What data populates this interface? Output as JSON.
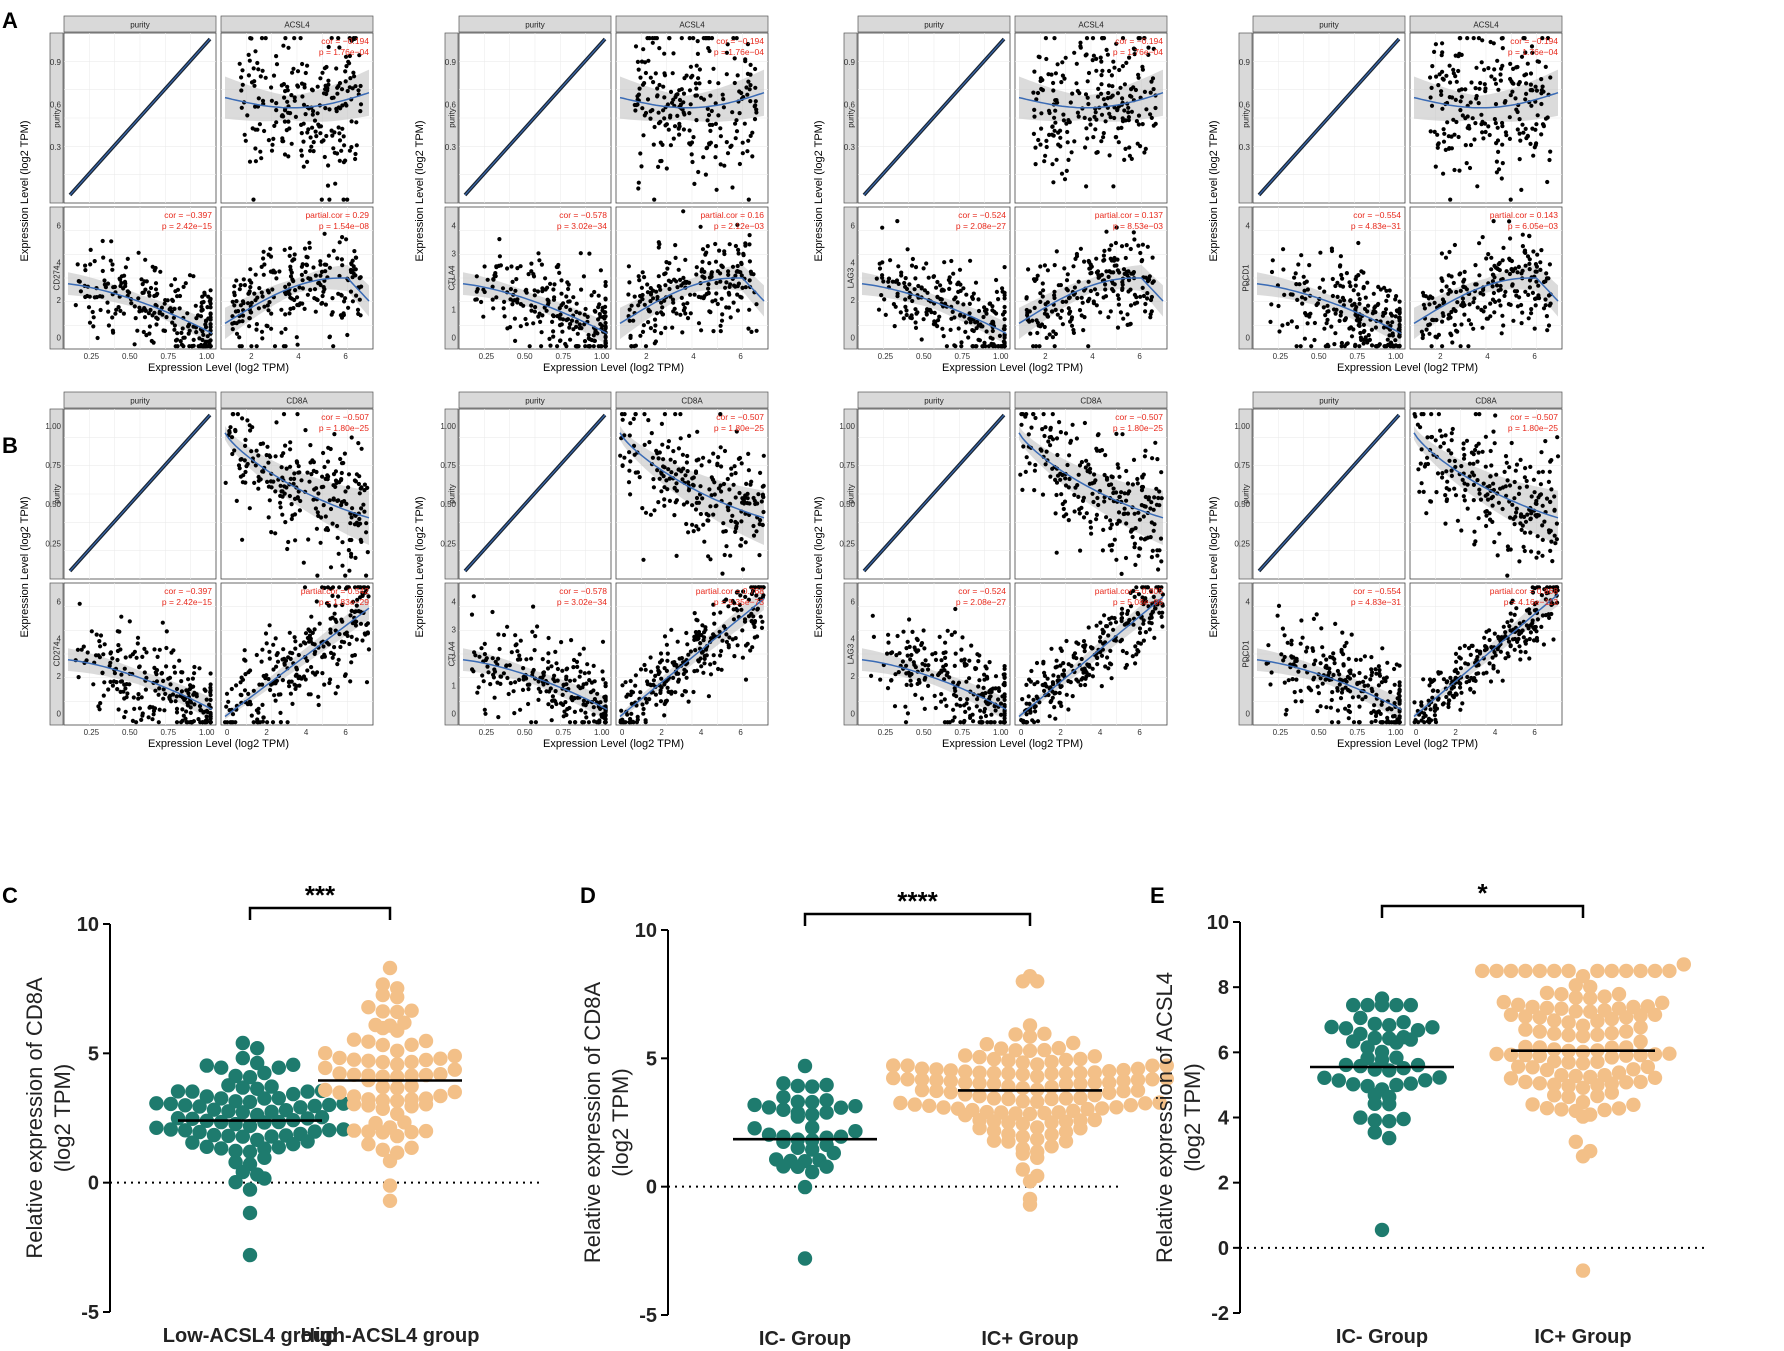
{
  "figure": {
    "panel_letters": [
      "A",
      "B",
      "C",
      "D",
      "E"
    ],
    "colors": {
      "strip_bg": "#d9d9d9",
      "left_strip_bg": "#d9d9d9",
      "point": "#000000",
      "fit_line": "#3a6bb5",
      "ci_band": "#bdbdbd",
      "stat_text": "#e8291c",
      "teal": "#1e7b6e",
      "peach": "#f3c088"
    }
  },
  "chart_data": [
    {
      "type": "scatter",
      "panel": "A",
      "gene": "CD274",
      "compare": "ACSL4",
      "facet_top_left": "purity",
      "facet_top_right": "ACSL4",
      "facet_bottom_left": "CD274",
      "xlabel": "Expression Level (log2 TPM)",
      "ylabel": "Expression Level (log2 TPM)",
      "purity_ticks": [
        "0.3",
        "0.6",
        "0.9"
      ],
      "gene_ticks": [
        "0",
        "2",
        "4",
        "6"
      ],
      "x_purity_ticks": [
        "0.25",
        "0.50",
        "0.75",
        "1.00"
      ],
      "x_gene_ticks": [
        "2",
        "4",
        "6"
      ],
      "stats_top_right": [
        "cor = −0.194",
        "p = 1.76e−04"
      ],
      "stats_bottom_left": [
        "cor = −0.397",
        "p = 2.42e−15"
      ],
      "stats_bottom_right": [
        "partial.cor = 0.29",
        "p = 1.54e−08"
      ],
      "partial_r": 0.29
    },
    {
      "type": "scatter",
      "panel": "A",
      "gene": "CTLA4",
      "compare": "ACSL4",
      "facet_top_left": "purity",
      "facet_top_right": "ACSL4",
      "facet_bottom_left": "CTLA4",
      "xlabel": "Expression Level (log2 TPM)",
      "ylabel": "Expression Level (log2 TPM)",
      "purity_ticks": [
        "0.3",
        "0.6",
        "0.9"
      ],
      "gene_ticks": [
        "0",
        "1",
        "2",
        "3",
        "4"
      ],
      "x_purity_ticks": [
        "0.25",
        "0.50",
        "0.75",
        "1.00"
      ],
      "x_gene_ticks": [
        "2",
        "4",
        "6"
      ],
      "stats_top_right": [
        "cor = −0.194",
        "p = 1.76e−04"
      ],
      "stats_bottom_left": [
        "cor = −0.578",
        "p = 3.02e−34"
      ],
      "stats_bottom_right": [
        "partial.cor = 0.16",
        "p = 2.12e−03"
      ],
      "partial_r": 0.16
    },
    {
      "type": "scatter",
      "panel": "A",
      "gene": "LAG3",
      "compare": "ACSL4",
      "facet_top_left": "purity",
      "facet_top_right": "ACSL4",
      "facet_bottom_left": "LAG3",
      "xlabel": "Expression Level (log2 TPM)",
      "ylabel": "Expression Level (log2 TPM)",
      "purity_ticks": [
        "0.3",
        "0.6",
        "0.9"
      ],
      "gene_ticks": [
        "0",
        "2",
        "4",
        "6"
      ],
      "x_purity_ticks": [
        "0.25",
        "0.50",
        "0.75",
        "1.00"
      ],
      "x_gene_ticks": [
        "2",
        "4",
        "6"
      ],
      "stats_top_right": [
        "cor = −0.194",
        "p = 1.76e−04"
      ],
      "stats_bottom_left": [
        "cor = −0.524",
        "p = 2.08e−27"
      ],
      "stats_bottom_right": [
        "partial.cor = 0.137",
        "p = 8.53e−03"
      ],
      "partial_r": 0.137
    },
    {
      "type": "scatter",
      "panel": "A",
      "gene": "PDCD1",
      "compare": "ACSL4",
      "facet_top_left": "purity",
      "facet_top_right": "ACSL4",
      "facet_bottom_left": "PDCD1",
      "xlabel": "Expression Level (log2 TPM)",
      "ylabel": "Expression Level (log2 TPM)",
      "purity_ticks": [
        "0.3",
        "0.6",
        "0.9"
      ],
      "gene_ticks": [
        "0",
        "2",
        "4"
      ],
      "x_purity_ticks": [
        "0.25",
        "0.50",
        "0.75",
        "1.00"
      ],
      "x_gene_ticks": [
        "2",
        "4",
        "6"
      ],
      "stats_top_right": [
        "cor = −0.194",
        "p = 1.76e−04"
      ],
      "stats_bottom_left": [
        "cor = −0.554",
        "p = 4.83e−31"
      ],
      "stats_bottom_right": [
        "partial.cor = 0.143",
        "p = 6.05e−03"
      ],
      "partial_r": 0.143
    },
    {
      "type": "scatter",
      "panel": "B",
      "gene": "CD274",
      "compare": "CD8A",
      "facet_top_left": "purity",
      "facet_top_right": "CD8A",
      "facet_bottom_left": "CD274",
      "xlabel": "Expression Level (log2 TPM)",
      "ylabel": "Expression Level (log2 TPM)",
      "purity_ticks": [
        "0.25",
        "0.50",
        "0.75",
        "1.00"
      ],
      "gene_ticks": [
        "0",
        "2",
        "4",
        "6"
      ],
      "x_purity_ticks": [
        "0.25",
        "0.50",
        "0.75",
        "1.00"
      ],
      "x_gene_ticks": [
        "0",
        "2",
        "4",
        "6"
      ],
      "stats_top_right": [
        "cor = −0.507",
        "p = 1.80e−25"
      ],
      "stats_bottom_left": [
        "cor = −0.397",
        "p = 2.42e−15"
      ],
      "stats_bottom_right": [
        "partial.cor = 0.542",
        "p = 1.83e−29"
      ],
      "partial_r": 0.542
    },
    {
      "type": "scatter",
      "panel": "B",
      "gene": "CTLA4",
      "compare": "CD8A",
      "facet_top_left": "purity",
      "facet_top_right": "CD8A",
      "facet_bottom_left": "CTLA4",
      "xlabel": "Expression Level (log2 TPM)",
      "ylabel": "Expression Level (log2 TPM)",
      "purity_ticks": [
        "0.25",
        "0.50",
        "0.75",
        "1.00"
      ],
      "gene_ticks": [
        "0",
        "1",
        "2",
        "3",
        "4"
      ],
      "x_purity_ticks": [
        "0.25",
        "0.50",
        "0.75",
        "1.00"
      ],
      "x_gene_ticks": [
        "0",
        "2",
        "4",
        "6"
      ],
      "stats_top_right": [
        "cor = −0.507",
        "p = 1.80e−25"
      ],
      "stats_bottom_left": [
        "cor = −0.578",
        "p = 3.02e−34"
      ],
      "stats_bottom_right": [
        "partial.cor = 0.768",
        "p = 9.35e−73"
      ],
      "partial_r": 0.768
    },
    {
      "type": "scatter",
      "panel": "B",
      "gene": "LAG3",
      "compare": "CD8A",
      "facet_top_left": "purity",
      "facet_top_right": "CD8A",
      "facet_bottom_left": "LAG3",
      "xlabel": "Expression Level (log2 TPM)",
      "ylabel": "Expression Level (log2 TPM)",
      "purity_ticks": [
        "0.25",
        "0.50",
        "0.75",
        "1.00"
      ],
      "gene_ticks": [
        "0",
        "2",
        "4",
        "6"
      ],
      "x_purity_ticks": [
        "0.25",
        "0.50",
        "0.75",
        "1.00"
      ],
      "x_gene_ticks": [
        "0",
        "2",
        "4",
        "6"
      ],
      "stats_top_right": [
        "cor = −0.507",
        "p = 1.80e−25"
      ],
      "stats_bottom_left": [
        "cor = −0.524",
        "p = 2.08e−27"
      ],
      "stats_bottom_right": [
        "partial.cor = 0.805",
        "p = 5.08e−86"
      ],
      "partial_r": 0.805
    },
    {
      "type": "scatter",
      "panel": "B",
      "gene": "PDCD1",
      "compare": "CD8A",
      "facet_top_left": "purity",
      "facet_top_right": "CD8A",
      "facet_bottom_left": "PDCD1",
      "xlabel": "Expression Level (log2 TPM)",
      "ylabel": "Expression Level (log2 TPM)",
      "purity_ticks": [
        "0.25",
        "0.50",
        "0.75",
        "1.00"
      ],
      "gene_ticks": [
        "0",
        "2",
        "4"
      ],
      "x_purity_ticks": [
        "0.25",
        "0.50",
        "0.75",
        "1.00"
      ],
      "x_gene_ticks": [
        "0",
        "2",
        "4",
        "6"
      ],
      "stats_top_right": [
        "cor = −0.507",
        "p = 1.80e−25"
      ],
      "stats_bottom_left": [
        "cor = −0.554",
        "p = 4.83e−31"
      ],
      "stats_bottom_right": [
        "partial.cor = 0.868",
        "p = 4.16e−113"
      ],
      "partial_r": 0.868
    },
    {
      "type": "scatter",
      "subtype": "dot_plot",
      "panel": "C",
      "ylabel": [
        "Relative expression of CD8A",
        "(log2 TPM)"
      ],
      "ylim": [
        -5,
        10
      ],
      "yticks": [
        "-5",
        "0",
        "5",
        "10"
      ],
      "dotted_zero": true,
      "significance": "***",
      "series": [
        {
          "name": "Low-ACSL4 group",
          "color": "#1e7b6e",
          "mean": 2.4,
          "n": 84,
          "min": -2.8,
          "max": 5.4
        },
        {
          "name": "High-ACSL4 group",
          "color": "#f3c088",
          "mean": 3.95,
          "n": 76,
          "min": -0.7,
          "max": 8.3
        }
      ]
    },
    {
      "type": "scatter",
      "subtype": "dot_plot",
      "panel": "D",
      "ylabel": [
        "Relative expression of CD8A",
        "(log2 TPM)"
      ],
      "ylim": [
        -5,
        10
      ],
      "yticks": [
        "-5",
        "0",
        "5",
        "10"
      ],
      "dotted_zero": true,
      "significance": "****",
      "series": [
        {
          "name": "IC- Group",
          "color": "#1e7b6e",
          "mean": 1.85,
          "n": 42,
          "min": -2.8,
          "max": 4.7
        },
        {
          "name": "IC+ Group",
          "color": "#f3c088",
          "mean": 3.75,
          "n": 130,
          "min": -0.7,
          "max": 8.2
        }
      ]
    },
    {
      "type": "scatter",
      "subtype": "dot_plot",
      "panel": "E",
      "ylabel": [
        "Relative expression of ACSL4",
        "(log2 TPM)"
      ],
      "ylim": [
        -2,
        10
      ],
      "yticks": [
        "-2",
        "0",
        "2",
        "4",
        "6",
        "8",
        "10"
      ],
      "dotted_zero": true,
      "significance": "*",
      "series": [
        {
          "name": "IC- Group",
          "color": "#1e7b6e",
          "mean": 5.55,
          "n": 52,
          "min": 0.55,
          "max": 7.65
        },
        {
          "name": "IC+ Group",
          "color": "#f3c088",
          "mean": 6.05,
          "n": 116,
          "min": -0.7,
          "max": 8.7
        }
      ]
    }
  ]
}
